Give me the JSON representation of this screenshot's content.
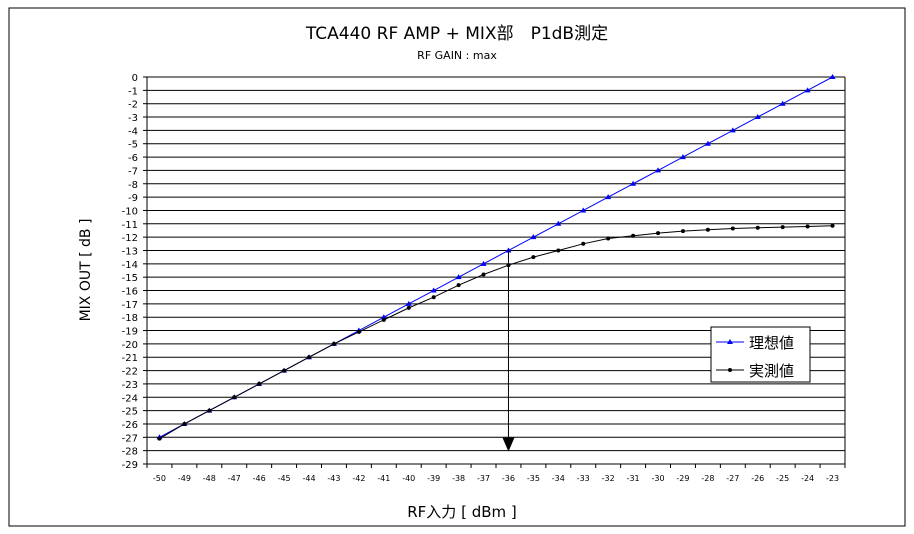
{
  "chart_data": {
    "type": "line",
    "title": "TCA440 RF AMP + MIX部　P1dB測定",
    "subtitle": "RF GAIN : max",
    "xlabel": "RF入力 [ dBm ]",
    "ylabel": "MIX OUT [ dB ]",
    "xlim": [
      -50,
      -23
    ],
    "ylim": [
      -29,
      0
    ],
    "grid": "horizontal",
    "legend_position": "bottom-right",
    "x": [
      -50,
      -49,
      -48,
      -47,
      -46,
      -45,
      -44,
      -43,
      -42,
      -41,
      -40,
      -39,
      -38,
      -37,
      -36,
      -35,
      -34,
      -33,
      -32,
      -31,
      -30,
      -29,
      -28,
      -27,
      -26,
      -25,
      -24,
      -23
    ],
    "series": [
      {
        "name": "理想値",
        "color": "#0000ff",
        "marker": "triangle",
        "values": [
          -27,
          -26,
          -25,
          -24,
          -23,
          -22,
          -21,
          -20,
          -19,
          -18,
          -17,
          -16,
          -15,
          -14,
          -13,
          -12,
          -11,
          -10,
          -9,
          -8,
          -7,
          -6,
          -5,
          -4,
          -3,
          -2,
          -1,
          0
        ]
      },
      {
        "name": "実測値",
        "color": "#000000",
        "marker": "dot",
        "values": [
          -27.1,
          -26.0,
          -25.0,
          -24.0,
          -23.0,
          -22.0,
          -21.0,
          -20.0,
          -19.1,
          -18.2,
          -17.3,
          -16.5,
          -15.6,
          -14.8,
          -14.1,
          -13.5,
          -13.0,
          -12.5,
          -12.1,
          -11.9,
          -11.7,
          -11.55,
          -11.45,
          -11.35,
          -11.3,
          -11.25,
          -11.2,
          -11.15
        ]
      }
    ],
    "annotation": {
      "type": "arrow",
      "x": -36,
      "from_y": -13,
      "to_y": -28
    }
  }
}
